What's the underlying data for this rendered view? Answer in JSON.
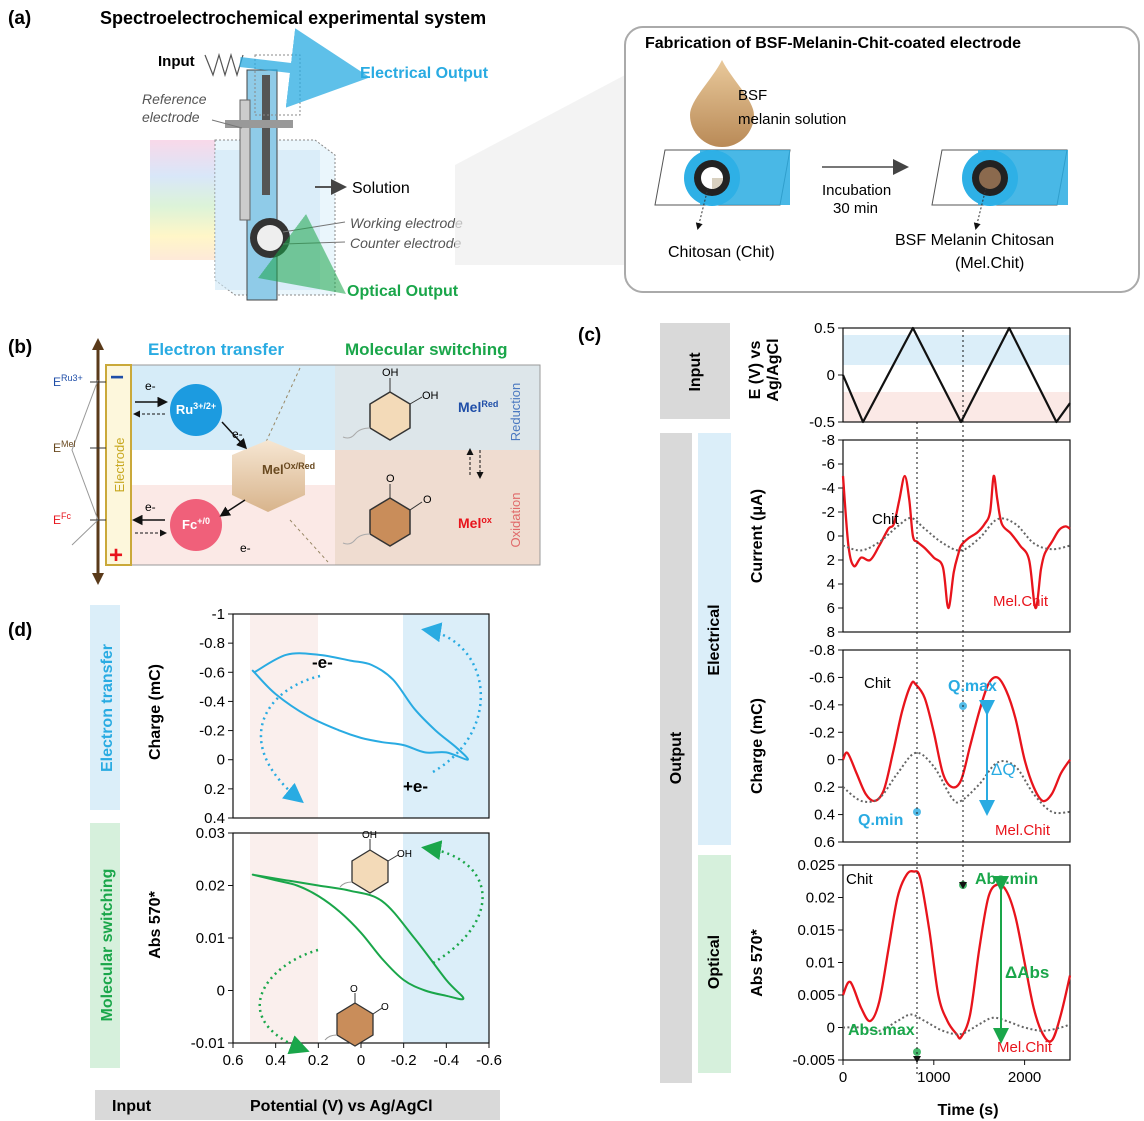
{
  "panel_a": {
    "label": "(a)",
    "title": "Spectroelectrochemical experimental system",
    "input": "Input",
    "electrical_output": "Electrical Output",
    "reference_line1": "Reference",
    "reference_line2": "electrode",
    "solution": "Solution",
    "working_electrode": "Working electrode",
    "counter_electrode": "Counter electrode",
    "optical_output": "Optical Output",
    "fab_title": "Fabrication of BSF-Melanin-Chit-coated electrode",
    "bsf_line1": "BSF",
    "bsf_line2": "melanin solution",
    "incubation_line1": "Incubation",
    "incubation_line2": "30 min",
    "chitosan": "Chitosan (Chit)",
    "bsf_chitosan_line1": "BSF Melanin Chitosan",
    "bsf_chitosan_line2": "(Mel.Chit)"
  },
  "panel_b": {
    "label": "(b)",
    "electron_transfer": "Electron transfer",
    "molecular_switching": "Molecular switching",
    "e_ru": "E",
    "e_ru_sup": "Ru3+",
    "e_mel": "E",
    "e_mel_sup": "Mel",
    "e_fc": "E",
    "e_fc_sup": "Fc",
    "electrode": "Electrode",
    "minus": "−",
    "plus": "+",
    "e_minus": "e-",
    "ru": "Ru",
    "ru_sup": "3+/2+",
    "fc": "Fc",
    "fc_sup": "+/0",
    "mel": "Mel",
    "mel_sup": "Ox/Red",
    "mel_red": "Mel",
    "mel_red_sup": "Red",
    "mel_ox": "Mel",
    "mel_ox_sup": "ox",
    "reduction": "Reduction",
    "oxidation": "Oxidation",
    "oh": "OH",
    "o": "O"
  },
  "panel_c": {
    "label": "(c)",
    "input": "Input",
    "output": "Output",
    "electrical": "Electrical",
    "optical": "Optical",
    "ylabel_e_line1": "E (V) vs",
    "ylabel_e_line2": "Ag/AgCl",
    "ylabel_current": "Current (μA)",
    "ylabel_charge": "Charge (mC)",
    "ylabel_abs": "Abs 570*",
    "xlabel": "Time (s)",
    "chit": "Chit",
    "mel_chit": "Mel.Chit",
    "q_max": "Q.max",
    "q_min": "Q.min",
    "delta_q": "ΔQ",
    "abs_min": "Abs.min",
    "abs_max": "Abs.max",
    "delta_abs": "ΔAbs",
    "e_ticks": [
      "-0.5",
      "0",
      "0.5"
    ],
    "current_ticks": [
      "8",
      "6",
      "4",
      "2",
      "0",
      "-2",
      "-4",
      "-6",
      "-8"
    ],
    "charge_ticks": [
      "0.6",
      "0.4",
      "0.2",
      "0",
      "-0.2",
      "-0.4",
      "-0.6",
      "-0.8"
    ],
    "abs_ticks": [
      "-0.005",
      "0",
      "0.005",
      "0.01",
      "0.015",
      "0.02",
      "0.025"
    ],
    "x_ticks": [
      "0",
      "1000",
      "2000"
    ]
  },
  "panel_d": {
    "label": "(d)",
    "electron_transfer": "Electron transfer",
    "molecular_switching": "Molecular switching",
    "ylabel_charge": "Charge (mC)",
    "ylabel_abs": "Abs 570*",
    "minus_e": "-e-",
    "plus_e": "+e-",
    "charge_ticks": [
      "0.4",
      "0.2",
      "0",
      "-0.2",
      "-0.4",
      "-0.6",
      "-0.8",
      "-1"
    ],
    "abs_ticks": [
      "-0.01",
      "0",
      "0.01",
      "0.02",
      "0.03"
    ],
    "x_ticks": [
      "0.6",
      "0.4",
      "0.2",
      "0",
      "-0.2",
      "-0.4",
      "-0.6"
    ],
    "input": "Input",
    "xlabel": "Potential (V) vs Ag/AgCl"
  },
  "colors": {
    "red": "#e8141c",
    "blue": "#29abe2",
    "green": "#1aa64a",
    "dotted": "#666666",
    "gray_box": "#d9d9d9",
    "blue_box": "#dbeef9",
    "green_box": "#d6f0dc"
  },
  "chart_data": [
    {
      "type": "line",
      "panel": "c-input",
      "ylabel": "E (V) vs Ag/AgCl",
      "ylim": [
        0.5,
        -0.5
      ],
      "series": [
        {
          "x": [
            0,
            220,
            770,
            1300,
            1830,
            2350,
            2500
          ],
          "y": [
            0,
            -0.5,
            0.5,
            -0.5,
            0.5,
            -0.5,
            -0.3
          ]
        }
      ]
    },
    {
      "type": "line",
      "panel": "c-current",
      "ylabel": "Current (μA)",
      "ylim": [
        -8,
        8
      ],
      "series": [
        {
          "name": "Mel.Chit",
          "x": [
            0,
            60,
            120,
            200,
            300,
            400,
            500,
            560,
            620,
            680,
            730,
            770,
            820,
            900,
            1000,
            1100,
            1160,
            1220,
            1270,
            1300,
            1380,
            1480,
            1560,
            1620,
            1660,
            1700,
            1750,
            1850,
            1950,
            2050,
            2120,
            2180,
            2220,
            2300,
            2380,
            2450,
            2500
          ],
          "y": [
            -5,
            0.8,
            2.5,
            1.8,
            2,
            0.8,
            -0.6,
            -1,
            -3,
            -5,
            -3,
            0,
            0.5,
            1,
            1.8,
            2.6,
            6,
            3,
            1.5,
            0.8,
            0.2,
            -0.3,
            -1,
            -2,
            -5,
            -3,
            -1,
            -0.2,
            0.8,
            2,
            6,
            2.8,
            1.5,
            0.5,
            -0.5,
            -0.8,
            -0.6
          ]
        },
        {
          "name": "Chit",
          "x": [
            0,
            200,
            400,
            600,
            750,
            900,
            1100,
            1300,
            1500,
            1700,
            1900,
            2100,
            2300,
            2500
          ],
          "y": [
            0.8,
            1.2,
            0.5,
            -0.8,
            -1.5,
            -0.6,
            0.6,
            1.2,
            0.2,
            -1.4,
            -1,
            0.6,
            1.1,
            0.8
          ]
        }
      ]
    },
    {
      "type": "line",
      "panel": "c-charge",
      "ylabel": "Charge (mC)",
      "ylim": [
        -0.8,
        0.6
      ],
      "series": [
        {
          "name": "Mel.Chit",
          "x": [
            0,
            50,
            150,
            250,
            350,
            450,
            550,
            650,
            750,
            800,
            900,
            1000,
            1100,
            1200,
            1300,
            1400,
            1500,
            1600,
            1700,
            1800,
            1900,
            2000,
            2100,
            2200,
            2300,
            2400,
            2500
          ],
          "y": [
            0,
            -0.05,
            0.1,
            0.25,
            0.3,
            0.22,
            -0.05,
            -0.35,
            -0.55,
            -0.55,
            -0.45,
            -0.2,
            0.1,
            0.2,
            0.15,
            -0.1,
            -0.35,
            -0.55,
            -0.6,
            -0.5,
            -0.3,
            0,
            0.2,
            0.3,
            0.25,
            0.1,
            0
          ]
        },
        {
          "name": "Chit",
          "x": [
            0,
            200,
            400,
            600,
            800,
            1000,
            1200,
            1300,
            1500,
            1700,
            1900,
            2100,
            2300,
            2500
          ],
          "y": [
            0.2,
            0.3,
            0.28,
            0.1,
            -0.05,
            0.05,
            0.28,
            0.3,
            0.18,
            0.02,
            0.05,
            0.25,
            0.38,
            0.38
          ]
        }
      ]
    },
    {
      "type": "line",
      "panel": "c-abs",
      "ylabel": "Abs 570*",
      "ylim": [
        0.025,
        -0.005
      ],
      "series": [
        {
          "name": "Mel.Chit",
          "x": [
            0,
            80,
            200,
            300,
            400,
            500,
            600,
            700,
            780,
            850,
            950,
            1050,
            1150,
            1250,
            1300,
            1400,
            1500,
            1600,
            1700,
            1800,
            1900,
            2000,
            2100,
            2200,
            2300,
            2400,
            2500
          ],
          "y": [
            0.005,
            0.007,
            0.003,
            0.001,
            0.004,
            0.012,
            0.02,
            0.0235,
            0.024,
            0.023,
            0.015,
            0.005,
            0.001,
            -0.001,
            -0.0015,
            0.002,
            0.012,
            0.02,
            0.022,
            0.021,
            0.017,
            0.01,
            0.003,
            -0.001,
            -0.002,
            0.002,
            0.008
          ]
        },
        {
          "name": "Chit",
          "x": [
            0,
            200,
            400,
            600,
            750,
            900,
            1100,
            1300,
            1500,
            1650,
            1800,
            2000,
            2200,
            2400,
            2500
          ],
          "y": [
            0,
            0,
            -0.0005,
            0.001,
            0.002,
            0.001,
            -0.0005,
            -0.001,
            0.0005,
            0.0015,
            0.001,
            0,
            -0.0005,
            0,
            0.0005
          ]
        }
      ]
    },
    {
      "type": "line",
      "panel": "d-charge",
      "xlabel": "Potential (V) vs Ag/AgCl",
      "ylabel": "Charge (mC)",
      "xlim": [
        0.6,
        -0.6
      ],
      "ylim": [
        -1,
        0.4
      ],
      "series": [
        {
          "x": [
            0.5,
            0.35,
            0.2,
            0.05,
            -0.05,
            -0.15,
            -0.25,
            -0.35,
            -0.45,
            -0.5,
            -0.4,
            -0.3,
            -0.2,
            -0.1,
            0,
            0.1,
            0.25,
            0.4,
            0.5
          ],
          "y": [
            -0.6,
            -0.72,
            -0.72,
            -0.68,
            -0.65,
            -0.55,
            -0.35,
            -0.2,
            -0.08,
            0,
            -0.05,
            -0.05,
            -0.1,
            -0.12,
            -0.15,
            -0.2,
            -0.3,
            -0.45,
            -0.6
          ]
        }
      ]
    },
    {
      "type": "line",
      "panel": "d-abs",
      "xlabel": "Potential (V) vs Ag/AgCl",
      "ylabel": "Abs 570*",
      "xlim": [
        0.6,
        -0.6
      ],
      "ylim": [
        0.03,
        -0.01
      ],
      "series": [
        {
          "x": [
            0.5,
            0.35,
            0.2,
            0.05,
            -0.1,
            -0.25,
            -0.4,
            -0.48,
            -0.4,
            -0.3,
            -0.2,
            -0.1,
            0,
            0.1,
            0.2,
            0.3,
            0.4,
            0.5
          ],
          "y": [
            0.022,
            0.021,
            0.02,
            0.019,
            0.017,
            0.01,
            0.002,
            -0.0015,
            -0.001,
            0,
            0.002,
            0.006,
            0.011,
            0.015,
            0.018,
            0.02,
            0.021,
            0.022
          ]
        }
      ]
    }
  ]
}
